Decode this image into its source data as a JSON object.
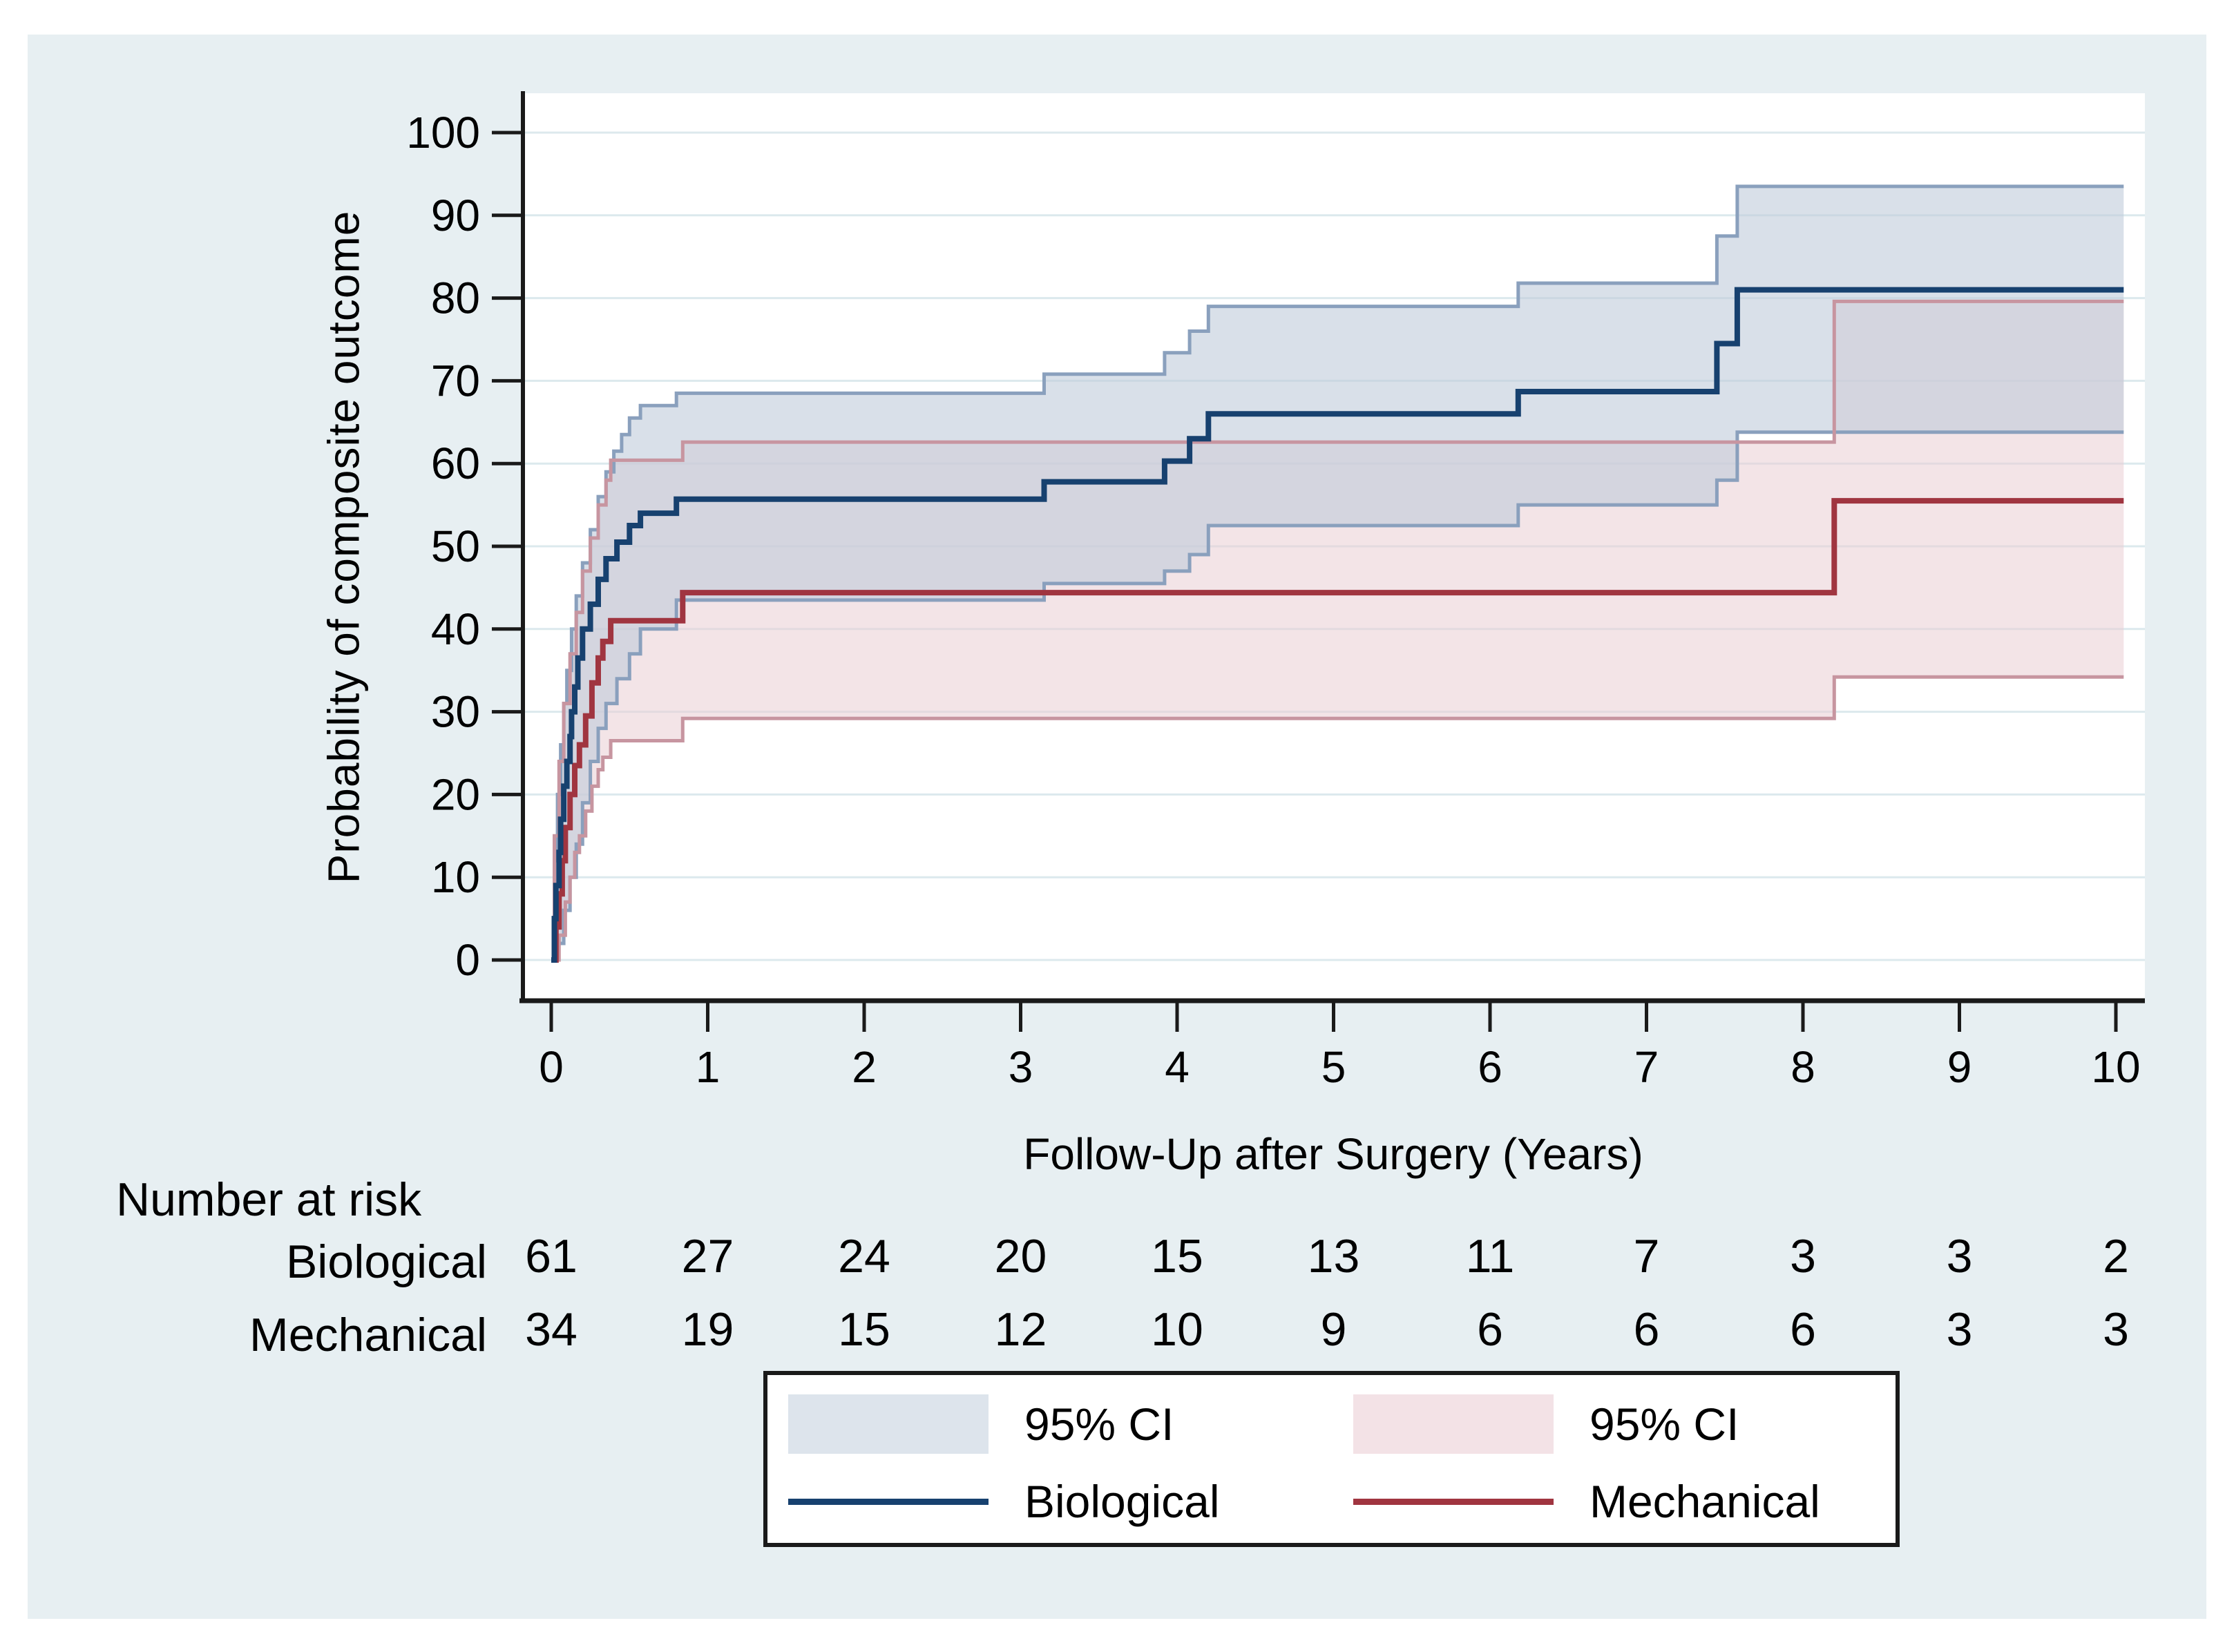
{
  "figure": {
    "background": "#ffffff",
    "panel_color": "#e7eff2",
    "plot_background": "#ffffff",
    "grid_color": "#dce9ed",
    "axis_color": "#1a1a1a",
    "text_color": "#000000"
  },
  "chart_data": {
    "type": "line",
    "subtype": "step-cumulative-incidence-with-ci",
    "title": "",
    "xlabel": "Follow-Up after Surgery (Years)",
    "ylabel": "Probability of composite outcome",
    "xlim": [
      0,
      10
    ],
    "ylim": [
      0,
      100
    ],
    "x_ticks": [
      0,
      1,
      2,
      3,
      4,
      5,
      6,
      7,
      8,
      9,
      10
    ],
    "y_ticks": [
      0,
      10,
      20,
      30,
      40,
      50,
      60,
      70,
      80,
      90,
      100
    ],
    "grid": "horizontal",
    "legend_position": "bottom-center",
    "series": [
      {
        "name": "Biological",
        "line_color": "#17416f",
        "ci_line_color": "#8aa0bd",
        "ci_fill_color": "#bfcbda",
        "ci_fill_opacity": 0.6,
        "estimate": [
          [
            0,
            0
          ],
          [
            0.02,
            5
          ],
          [
            0.03,
            9
          ],
          [
            0.05,
            13
          ],
          [
            0.06,
            17
          ],
          [
            0.08,
            21
          ],
          [
            0.1,
            24
          ],
          [
            0.12,
            27
          ],
          [
            0.13,
            30
          ],
          [
            0.15,
            33
          ],
          [
            0.17,
            36.5
          ],
          [
            0.2,
            40
          ],
          [
            0.25,
            43
          ],
          [
            0.3,
            46
          ],
          [
            0.35,
            48.5
          ],
          [
            0.42,
            50.5
          ],
          [
            0.5,
            52.5
          ],
          [
            0.57,
            54
          ],
          [
            0.8,
            55.7
          ],
          [
            3.15,
            57.8
          ],
          [
            3.92,
            60.3
          ],
          [
            4.08,
            63
          ],
          [
            4.2,
            66
          ],
          [
            6.18,
            68.7
          ],
          [
            7.45,
            74.5
          ],
          [
            7.58,
            81
          ],
          [
            10.05,
            81
          ]
        ],
        "ci_upper": [
          [
            0,
            0
          ],
          [
            0.02,
            12
          ],
          [
            0.04,
            20
          ],
          [
            0.06,
            26
          ],
          [
            0.08,
            31
          ],
          [
            0.1,
            35
          ],
          [
            0.13,
            40
          ],
          [
            0.16,
            44
          ],
          [
            0.2,
            48
          ],
          [
            0.25,
            52
          ],
          [
            0.3,
            56
          ],
          [
            0.35,
            59
          ],
          [
            0.4,
            61.5
          ],
          [
            0.45,
            63.5
          ],
          [
            0.5,
            65.5
          ],
          [
            0.57,
            67
          ],
          [
            0.8,
            68.5
          ],
          [
            3.15,
            70.8
          ],
          [
            3.92,
            73.4
          ],
          [
            4.08,
            76
          ],
          [
            4.2,
            79
          ],
          [
            6.18,
            81.8
          ],
          [
            7.45,
            87.5
          ],
          [
            7.58,
            93.5
          ],
          [
            10.05,
            93.5
          ]
        ],
        "ci_lower": [
          [
            0,
            0
          ],
          [
            0.04,
            2
          ],
          [
            0.08,
            6
          ],
          [
            0.12,
            10
          ],
          [
            0.16,
            14
          ],
          [
            0.2,
            19
          ],
          [
            0.25,
            24
          ],
          [
            0.3,
            28
          ],
          [
            0.35,
            31
          ],
          [
            0.42,
            34
          ],
          [
            0.5,
            37
          ],
          [
            0.57,
            40
          ],
          [
            0.8,
            43.5
          ],
          [
            3.15,
            45.5
          ],
          [
            3.92,
            47
          ],
          [
            4.08,
            49
          ],
          [
            4.2,
            52.5
          ],
          [
            6.18,
            55
          ],
          [
            7.45,
            58
          ],
          [
            7.58,
            63.8
          ],
          [
            10.05,
            63.8
          ]
        ]
      },
      {
        "name": "Mechanical",
        "line_color": "#a03540",
        "ci_line_color": "#c795a0",
        "ci_fill_color": "#e9cdd3",
        "ci_fill_opacity": 0.55,
        "estimate": [
          [
            0,
            0
          ],
          [
            0.03,
            4
          ],
          [
            0.05,
            8
          ],
          [
            0.07,
            12
          ],
          [
            0.09,
            16
          ],
          [
            0.12,
            20
          ],
          [
            0.15,
            23.5
          ],
          [
            0.18,
            26
          ],
          [
            0.22,
            29.5
          ],
          [
            0.26,
            33.5
          ],
          [
            0.3,
            36.5
          ],
          [
            0.33,
            38.5
          ],
          [
            0.38,
            41
          ],
          [
            0.84,
            44.4
          ],
          [
            8.2,
            55.5
          ],
          [
            10.05,
            55.5
          ]
        ],
        "ci_upper": [
          [
            0,
            0
          ],
          [
            0.02,
            15
          ],
          [
            0.05,
            24
          ],
          [
            0.08,
            31
          ],
          [
            0.12,
            37
          ],
          [
            0.16,
            42
          ],
          [
            0.2,
            47
          ],
          [
            0.25,
            51
          ],
          [
            0.3,
            55
          ],
          [
            0.35,
            58
          ],
          [
            0.38,
            60.4
          ],
          [
            0.84,
            62.6
          ],
          [
            8.2,
            79.6
          ],
          [
            10.05,
            79.6
          ]
        ],
        "ci_lower": [
          [
            0,
            0
          ],
          [
            0.05,
            3
          ],
          [
            0.09,
            7
          ],
          [
            0.12,
            10
          ],
          [
            0.15,
            13
          ],
          [
            0.18,
            15
          ],
          [
            0.22,
            18
          ],
          [
            0.26,
            21
          ],
          [
            0.3,
            23
          ],
          [
            0.33,
            24.5
          ],
          [
            0.38,
            26.5
          ],
          [
            0.84,
            29.2
          ],
          [
            8.2,
            34.2
          ],
          [
            10.05,
            34.2
          ]
        ]
      }
    ],
    "risk_table": {
      "title": "Number at risk",
      "times": [
        0,
        1,
        2,
        3,
        4,
        5,
        6,
        7,
        8,
        9,
        10
      ],
      "rows": [
        {
          "label": "Biological",
          "counts": [
            61,
            27,
            24,
            20,
            15,
            13,
            11,
            7,
            3,
            3,
            2
          ]
        },
        {
          "label": "Mechanical",
          "counts": [
            34,
            19,
            15,
            12,
            10,
            9,
            6,
            6,
            6,
            3,
            3
          ]
        }
      ]
    },
    "legend": [
      {
        "swatch": "fill",
        "color": "#dde4ec",
        "label": "95% CI"
      },
      {
        "swatch": "fill",
        "color": "#f3e2e6",
        "label": "95% CI"
      },
      {
        "swatch": "line",
        "color": "#17416f",
        "label": "Biological"
      },
      {
        "swatch": "line",
        "color": "#a03540",
        "label": "Mechanical"
      }
    ]
  }
}
